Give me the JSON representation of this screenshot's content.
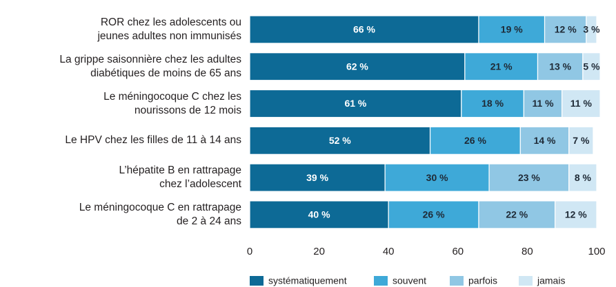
{
  "chart_data": {
    "type": "stacked_barh",
    "categories": [
      "ROR chez les adolescents ou\njeunes adultes non immunisés",
      "La grippe saisonnière chez les adultes\ndiabétiques de moins de 65 ans",
      "Le méningocoque C chez les\nnourissons de 12 mois",
      "Le HPV chez les filles de 11 à 14 ans",
      "L’hépatite B en rattrapage\nchez l’adolescent",
      "Le méningocoque C en rattrapage\nde 2 à 24 ans"
    ],
    "series": [
      {
        "name": "systématiquement",
        "color": "#0d6a96",
        "values": [
          66,
          62,
          61,
          52,
          39,
          40
        ],
        "value_labels": [
          "66 %",
          "62 %",
          "61 %",
          "52 %",
          "39 %",
          "40 %"
        ]
      },
      {
        "name": "souvent",
        "color": "#3ea9d8",
        "values": [
          19,
          21,
          18,
          26,
          30,
          26
        ],
        "value_labels": [
          "19 %",
          "21 %",
          "18 %",
          "26 %",
          "30 %",
          "26 %"
        ]
      },
      {
        "name": "parfois",
        "color": "#90c7e4",
        "values": [
          12,
          13,
          11,
          14,
          23,
          22
        ],
        "value_labels": [
          "12 %",
          "13 %",
          "11 %",
          "14 %",
          "23 %",
          "22 %"
        ]
      },
      {
        "name": "jamais",
        "color": "#d0e7f4",
        "values": [
          3,
          5,
          11,
          7,
          8,
          12
        ],
        "value_labels": [
          "3 %",
          "5 %",
          "11 %",
          "7 %",
          "8 %",
          "12 %"
        ]
      }
    ],
    "xlim": [
      0,
      100
    ],
    "xticks": [
      0,
      20,
      40,
      60,
      80,
      100
    ],
    "legend": "bottom"
  }
}
